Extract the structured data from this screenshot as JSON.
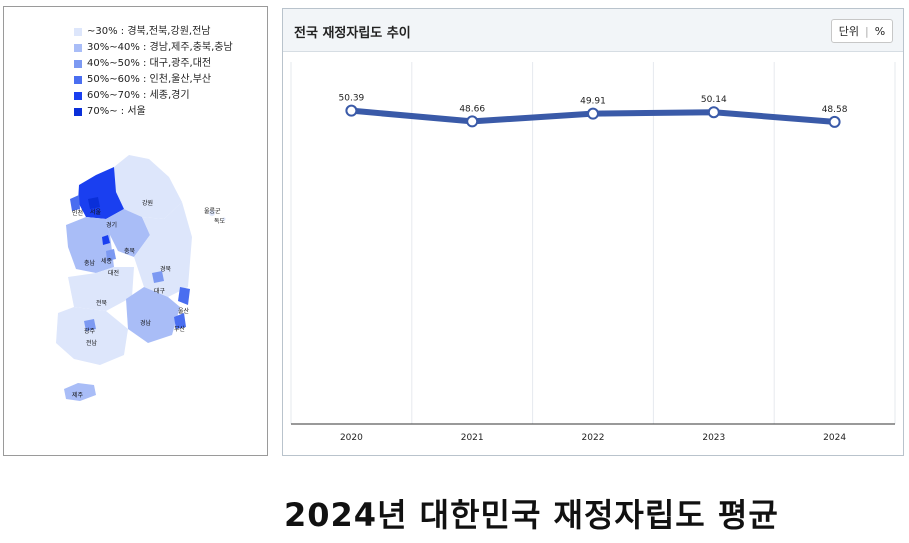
{
  "map": {
    "legend": [
      {
        "label": "~30% : 경북,전북,강원,전남",
        "color": "#dde6fb"
      },
      {
        "label": "30%~40% : 경남,제주,충북,충남",
        "color": "#a9bdf7"
      },
      {
        "label": "40%~50% : 대구,광주,대전",
        "color": "#7c99f2"
      },
      {
        "label": "50%~60% : 인천,울산,부산",
        "color": "#4a6ef0"
      },
      {
        "label": "60%~70% : 세종,경기",
        "color": "#1a3ff0"
      },
      {
        "label": "70%~ : 서울",
        "color": "#0a2fd9"
      }
    ],
    "regions": {
      "gangwon": "강원",
      "gyeonggi": "경기",
      "incheon": "인천",
      "seoul": "서울",
      "chungbuk": "충북",
      "chungnam": "충남",
      "sejong": "세종",
      "daejeon": "대전",
      "gyeongbuk": "경북",
      "daegu": "대구",
      "jeonbuk": "전북",
      "gwangju": "광주",
      "jeonnam": "전남",
      "gyeongnam": "경남",
      "ulsan": "울산",
      "busan": "부산",
      "jeju": "제주",
      "ulleung": "울릉군",
      "dokdo": "독도"
    }
  },
  "chart_panel": {
    "title": "전국 재정자립도 추이",
    "unit_label": "단위",
    "unit_value": "%"
  },
  "chart_data": {
    "type": "line",
    "title": "전국 재정자립도 추이",
    "categories": [
      "2020",
      "2021",
      "2022",
      "2023",
      "2024"
    ],
    "series": [
      {
        "values": [
          50.39,
          48.66,
          49.91,
          50.14,
          48.58
        ]
      }
    ],
    "line_color": "#3a5aa8",
    "ylim": [
      0,
      55
    ],
    "grid": "vertical"
  },
  "caption": "2024년 대한민국 재정자립도 평균"
}
